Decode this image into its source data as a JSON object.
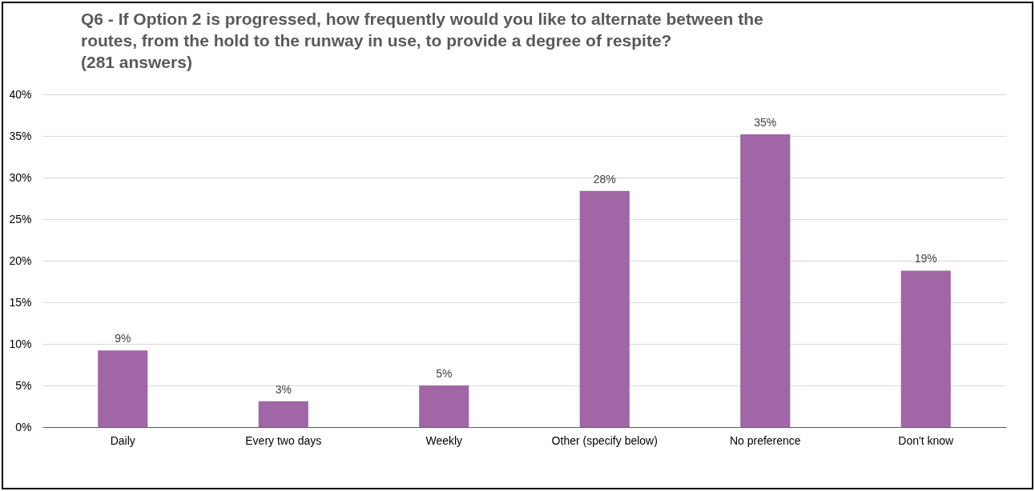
{
  "chart_data": {
    "type": "bar",
    "title": [
      "Q6 - If Option 2 is progressed, how frequently would you like to alternate between the",
      "routes, from the hold to the runway in use, to provide a degree of respite?",
      "(281 answers)"
    ],
    "categories": [
      "Daily",
      "Every two days",
      "Weekly",
      "Other (specify below)",
      "No preference",
      "Don't know"
    ],
    "values": [
      9.2,
      3.1,
      5.0,
      28.4,
      35.2,
      18.8
    ],
    "value_labels": [
      "9%",
      "3%",
      "5%",
      "28%",
      "35%",
      "19%"
    ],
    "color": "#a066a6",
    "ylim": [
      0,
      40
    ],
    "yticks": [
      {
        "value": 0,
        "label": "0%"
      },
      {
        "value": 5,
        "label": "5%"
      },
      {
        "value": 10,
        "label": "10%"
      },
      {
        "value": 15,
        "label": "15%"
      },
      {
        "value": 20,
        "label": "20%"
      },
      {
        "value": 25,
        "label": "25%"
      },
      {
        "value": 30,
        "label": "30%"
      },
      {
        "value": 35,
        "label": "35%"
      },
      {
        "value": 40,
        "label": "40%"
      }
    ],
    "grid": "y"
  }
}
